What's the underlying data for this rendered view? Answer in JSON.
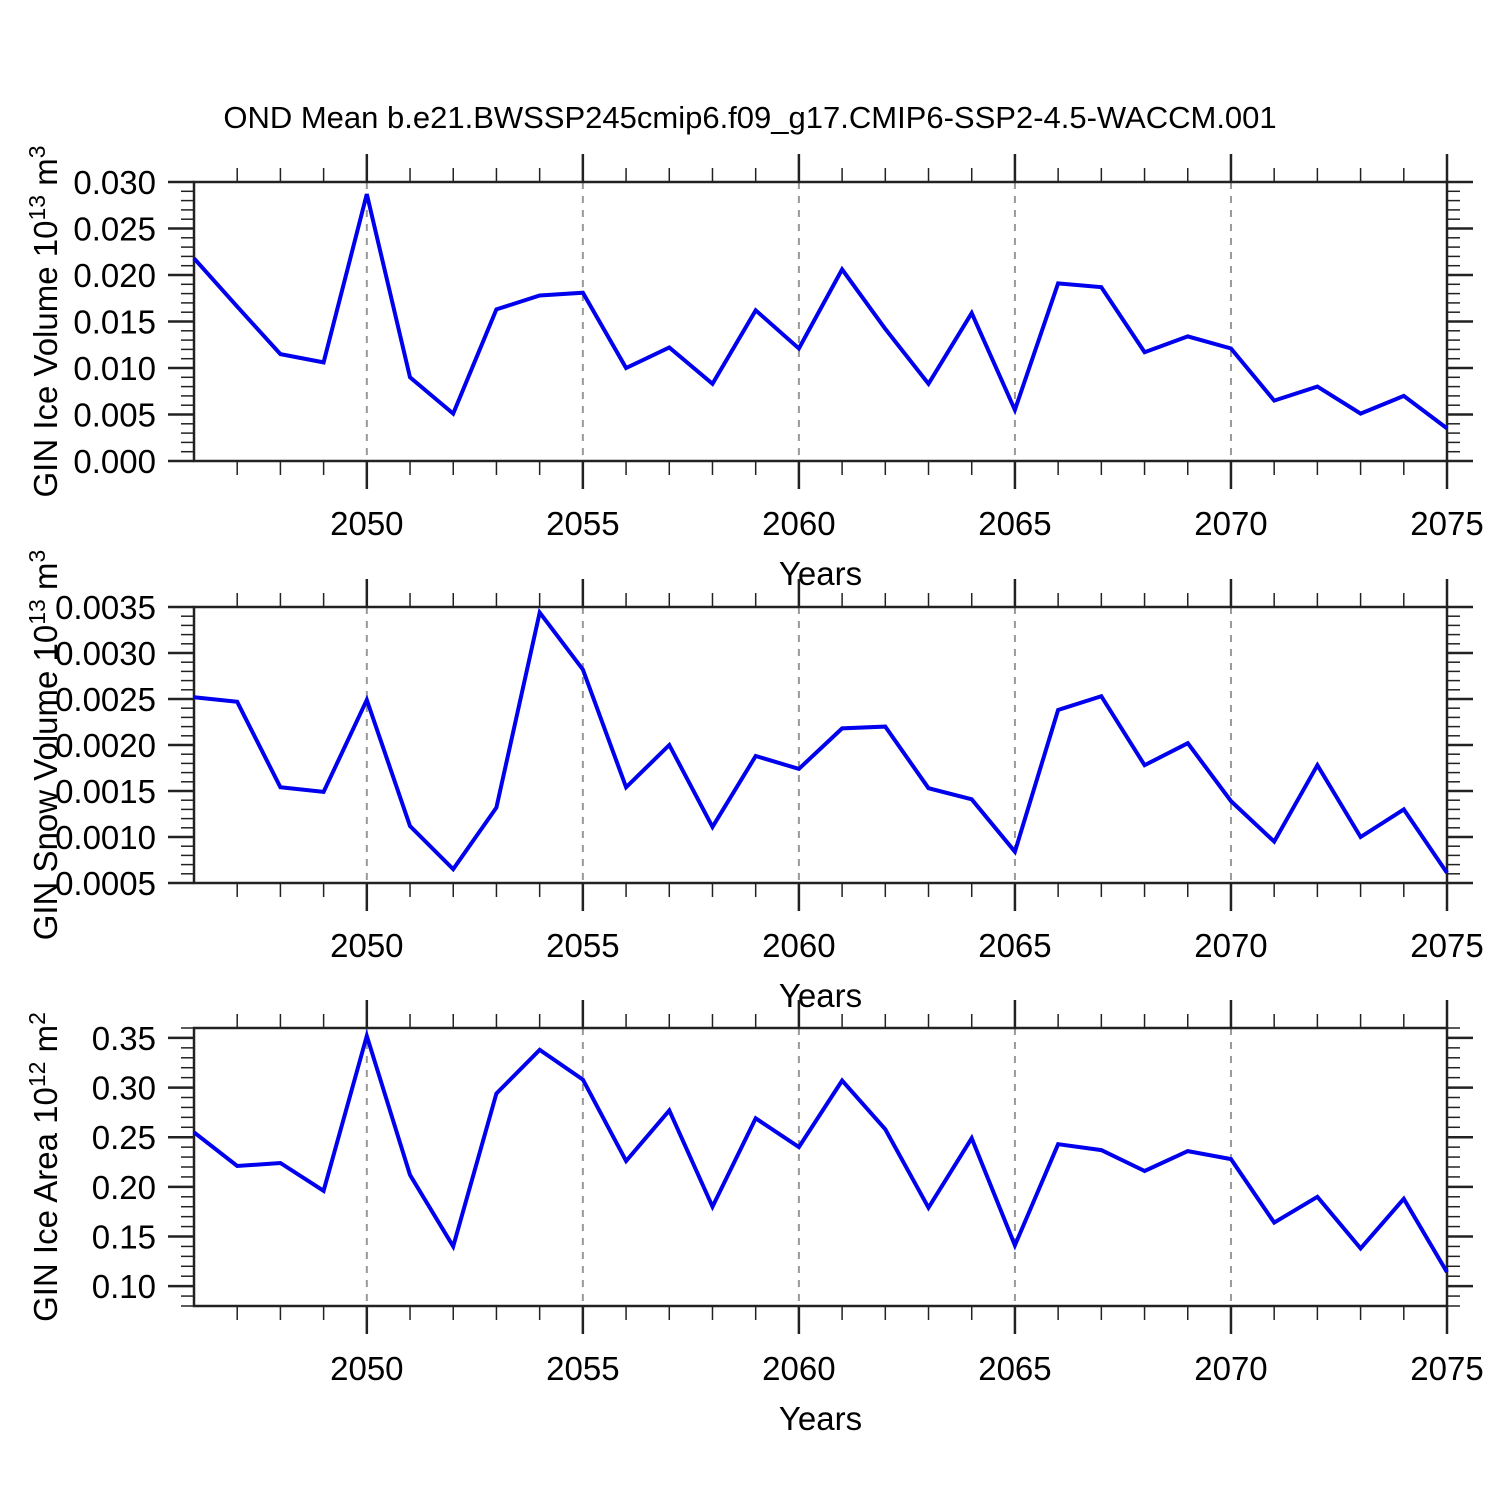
{
  "chart_data": {
    "type": "line",
    "title": "OND Mean b.e21.BWSSP245cmip6.f09_g17.CMIP6-SSP2-4.5-WACCM.001",
    "xlabel": "Years",
    "x": [
      2046,
      2047,
      2048,
      2049,
      2050,
      2051,
      2052,
      2053,
      2054,
      2055,
      2056,
      2057,
      2058,
      2059,
      2060,
      2061,
      2062,
      2063,
      2064,
      2065,
      2066,
      2067,
      2068,
      2069,
      2070,
      2071,
      2072,
      2073,
      2074,
      2075
    ],
    "x_range": [
      2046,
      2075
    ],
    "x_major_ticks": [
      2050,
      2055,
      2060,
      2065,
      2070,
      2075
    ],
    "x_gridlines": [
      2050,
      2055,
      2060,
      2065,
      2070
    ],
    "line_color": "#0000ee",
    "grid_color": "#999999",
    "axis_color": "#222222",
    "legend": "none",
    "grid_style": "dashed-vertical-at-major-x",
    "panels": [
      {
        "name": "ice-volume",
        "ylabel_prefix": "GIN Ice Volume 10",
        "ylabel_exponent": "13",
        "ylabel_unit": " m",
        "ylabel_unit_exponent": "3",
        "ylim": [
          0.0,
          0.03
        ],
        "ymajor_ticks": [
          0.0,
          0.005,
          0.01,
          0.015,
          0.02,
          0.025,
          0.03
        ],
        "yminor_step": 0.001,
        "ytick_decimals": 3,
        "values": [
          0.0218,
          0.0166,
          0.0115,
          0.0106,
          0.0287,
          0.009,
          0.0051,
          0.0163,
          0.0178,
          0.0181,
          0.01,
          0.0122,
          0.0083,
          0.0162,
          0.0121,
          0.0206,
          0.0142,
          0.0083,
          0.0159,
          0.0055,
          0.0191,
          0.0187,
          0.0117,
          0.0134,
          0.0121,
          0.0065,
          0.008,
          0.0051,
          0.007,
          0.0035
        ]
      },
      {
        "name": "snow-volume",
        "ylabel_prefix": "GIN Snow Volume 10",
        "ylabel_exponent": "13",
        "ylabel_unit": " m",
        "ylabel_unit_exponent": "3",
        "ylim": [
          0.0005,
          0.0035
        ],
        "ymajor_ticks": [
          0.0005,
          0.001,
          0.0015,
          0.002,
          0.0025,
          0.003,
          0.0035
        ],
        "yminor_step": 0.0001,
        "ytick_decimals": 4,
        "values": [
          0.00252,
          0.00247,
          0.00154,
          0.00149,
          0.00249,
          0.00112,
          0.00065,
          0.00132,
          0.00344,
          0.00282,
          0.00154,
          0.002,
          0.00111,
          0.00188,
          0.00174,
          0.00218,
          0.0022,
          0.00153,
          0.00141,
          0.00084,
          0.00238,
          0.00253,
          0.00178,
          0.00202,
          0.00139,
          0.00095,
          0.00178,
          0.001,
          0.0013,
          0.00061
        ]
      },
      {
        "name": "ice-area",
        "ylabel_prefix": "GIN Ice Area 10",
        "ylabel_exponent": "12",
        "ylabel_unit": " m",
        "ylabel_unit_exponent": "2",
        "ylim": [
          0.08,
          0.36
        ],
        "ymajor_ticks": [
          0.1,
          0.15,
          0.2,
          0.25,
          0.3,
          0.35
        ],
        "yminor_step": 0.01,
        "ytick_decimals": 2,
        "values": [
          0.255,
          0.221,
          0.224,
          0.196,
          0.352,
          0.212,
          0.14,
          0.294,
          0.338,
          0.308,
          0.226,
          0.277,
          0.18,
          0.269,
          0.24,
          0.307,
          0.258,
          0.179,
          0.249,
          0.141,
          0.243,
          0.237,
          0.216,
          0.236,
          0.228,
          0.164,
          0.19,
          0.138,
          0.188,
          0.114
        ]
      }
    ]
  }
}
